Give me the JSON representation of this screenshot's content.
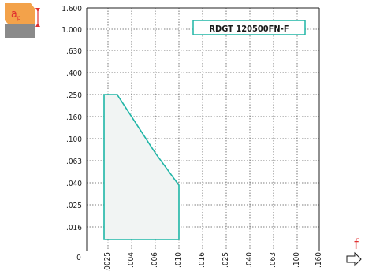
{
  "chart_data": {
    "type": "area",
    "title": "RDGT 120500FN-F",
    "xlabel": "f",
    "ylabel": "a",
    "ylabel_subscript": "p",
    "x_tick_labels": [
      "0",
      ".0025",
      ".004",
      ".006",
      ".010",
      ".016",
      ".025",
      ".040",
      ".063",
      ".100",
      ".160"
    ],
    "y_tick_labels": [
      "1.600",
      "1.000",
      ".630",
      ".400",
      ".250",
      ".160",
      ".100",
      ".063",
      ".040",
      ".025",
      ".016"
    ],
    "scale": "categorical-log",
    "grid": true,
    "region_points": [
      {
        "x": ".0025",
        "y": ".016"
      },
      {
        "x": ".010",
        "y": ".016"
      },
      {
        "x": ".010",
        "y": ".038"
      },
      {
        "x": ".006",
        "y": ".074"
      },
      {
        "x": ".003",
        "y": ".250"
      },
      {
        "x": ".0025",
        "y": ".250"
      }
    ],
    "colors": {
      "region_stroke": "#1fb5a6",
      "region_fill": "#f1f4f3",
      "icon_orange": "#f3a24a",
      "icon_gray": "#8a8a8a",
      "icon_red": "#e03030"
    }
  }
}
